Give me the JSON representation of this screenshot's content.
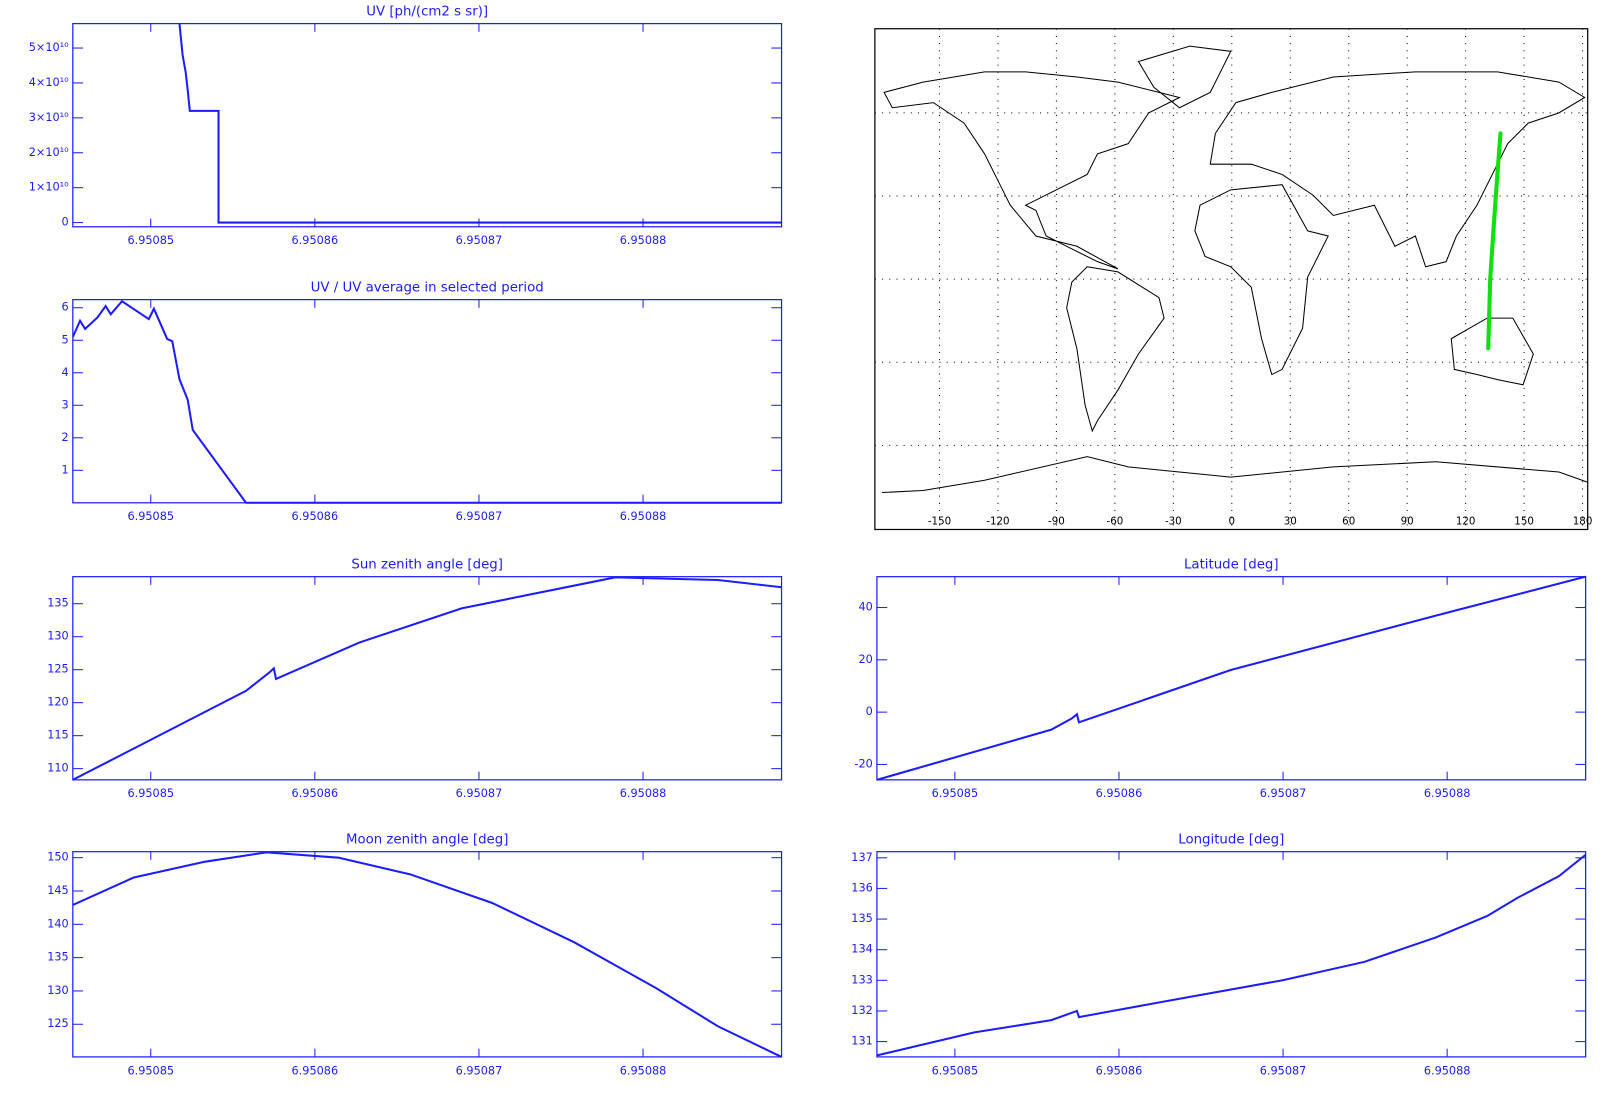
{
  "chart_data": [
    {
      "type": "line",
      "title": "UV [ph/(cm2 s sr)]",
      "x": [
        6.95085175,
        6.95085194,
        6.95085213,
        6.95085225,
        6.95085238,
        6.95085413,
        6.95085413,
        6.95088844
      ],
      "values": [
        57000000000,
        48000000000,
        43000000000,
        38000000000,
        32000000000,
        32000000000,
        0,
        0
      ],
      "color": "#1c1cff",
      "xlim": [
        6.95084525,
        6.95088844
      ],
      "xticks": [
        6.95085,
        6.95086,
        6.95087,
        6.95088
      ],
      "ylim": [
        -1200000000,
        57000000000
      ],
      "yticks": [
        0,
        {
          "value": 10000000000,
          "label": "1×10¹⁰"
        },
        {
          "value": 20000000000,
          "label": "2×10¹⁰"
        },
        {
          "value": 30000000000,
          "label": "3×10¹⁰"
        },
        {
          "value": 40000000000,
          "label": "4×10¹⁰"
        },
        {
          "value": 50000000000,
          "label": "5×10¹⁰"
        }
      ]
    },
    {
      "type": "line",
      "title": "UV / UV average in selected period",
      "x": [
        6.95084525,
        6.95084569,
        6.950846,
        6.95084675,
        6.95084725,
        6.95084756,
        6.95084825,
        6.95084988,
        6.95085019,
        6.950851,
        6.95085131,
        6.95085175,
        6.95085225,
        6.95085256,
        6.95085581,
        6.95088844
      ],
      "values": [
        5.1,
        5.6,
        5.35,
        5.7,
        6.05,
        5.8,
        6.2,
        5.65,
        5.97,
        5.04,
        4.97,
        3.8,
        3.17,
        2.24,
        0,
        0
      ],
      "color": "#1c1cff",
      "xlim": [
        6.95084525,
        6.95088844
      ],
      "xticks": [
        6.95085,
        6.95086,
        6.95087,
        6.95088
      ],
      "ylim": [
        0,
        6.25
      ],
      "yticks": [
        1,
        2,
        3,
        4,
        5,
        6
      ]
    },
    {
      "type": "map",
      "x": [
        131.6,
        132.6,
        134.5,
        136.3,
        137.9
      ],
      "values": [
        -25,
        0,
        20,
        38,
        52.6
      ],
      "color": "#10e010",
      "xlim": [
        -180,
        180
      ],
      "xticks": [
        -150,
        -120,
        -90,
        -60,
        -30,
        0,
        30,
        60,
        90,
        120,
        150,
        180
      ],
      "ylim": [
        -90,
        90
      ],
      "yticks": [
        -60,
        -30,
        0,
        30,
        60
      ],
      "grid": true
    },
    {
      "type": "line",
      "title": "Sun zenith angle [deg]",
      "x": [
        6.95084525,
        6.95085581,
        6.95085719,
        6.9508575,
        6.95085763,
        6.95086269,
        6.95086894,
        6.95087831,
        6.95088456,
        6.95088844
      ],
      "values": [
        108.3,
        121.8,
        124.5,
        125.2,
        123.6,
        129.1,
        134.3,
        139.0,
        138.6,
        137.5
      ],
      "color": "#1c1cff",
      "xlim": [
        6.95084525,
        6.95088844
      ],
      "xticks": [
        6.95085,
        6.95086,
        6.95087,
        6.95088
      ],
      "ylim": [
        108.3,
        139.1
      ],
      "yticks": [
        110,
        115,
        120,
        125,
        130,
        135
      ]
    },
    {
      "type": "line",
      "title": "Latitude [deg]",
      "x": [
        6.95084525,
        6.95085588,
        6.95085713,
        6.95085744,
        6.95085756,
        6.95086681,
        6.95087931,
        6.95088844
      ],
      "values": [
        -25.9,
        -6.7,
        -2.4,
        -0.8,
        -3.9,
        16.1,
        36.9,
        51.8
      ],
      "color": "#1c1cff",
      "xlim": [
        6.95084525,
        6.95088844
      ],
      "xticks": [
        6.95085,
        6.95086,
        6.95087,
        6.95088
      ],
      "ylim": [
        -25.9,
        51.8
      ],
      "yticks": [
        -20,
        0,
        20,
        40
      ]
    },
    {
      "type": "line",
      "title": "Moon zenith angle [deg]",
      "x": [
        6.95084525,
        6.95084894,
        6.95085331,
        6.95085706,
        6.95086144,
        6.95086581,
        6.95087081,
        6.95087581,
        6.95088081,
        6.95088456,
        6.95088844
      ],
      "values": [
        142.9,
        147,
        149.4,
        150.8,
        150,
        147.5,
        143.2,
        137.3,
        130.4,
        124.7,
        120.1
      ],
      "color": "#1c1cff",
      "xlim": [
        6.95084525,
        6.95088844
      ],
      "xticks": [
        6.95085,
        6.95086,
        6.95087,
        6.95088
      ],
      "ylim": [
        120.1,
        150.9
      ],
      "yticks": [
        125,
        130,
        135,
        140,
        145,
        150
      ]
    },
    {
      "type": "line",
      "title": "Longitude [deg]",
      "x": [
        6.95084525,
        6.95085119,
        6.95085588,
        6.95085744,
        6.95085756,
        6.95086369,
        6.95086994,
        6.95087494,
        6.95087931,
        6.95088244,
        6.95088431,
        6.95088681,
        6.95088844
      ],
      "values": [
        130.55,
        131.3,
        131.7,
        132.0,
        131.8,
        132.4,
        133.0,
        133.6,
        134.4,
        135.1,
        135.7,
        136.4,
        137.1
      ],
      "color": "#1c1cff",
      "xlim": [
        6.95084525,
        6.95088844
      ],
      "xticks": [
        6.95085,
        6.95086,
        6.95087,
        6.95088
      ],
      "ylim": [
        130.5,
        137.2
      ],
      "yticks": [
        131,
        132,
        133,
        134,
        135,
        136,
        137
      ]
    }
  ]
}
